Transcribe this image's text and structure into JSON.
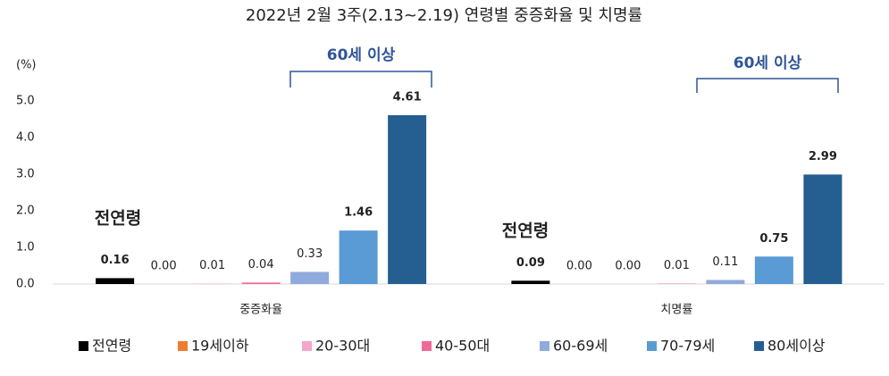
{
  "chart_data": {
    "type": "bar",
    "title": "2022년 2월 3주(2.13~2.19) 연령별 중증화율 및 치명률",
    "y_label": "(%)",
    "categories": [
      "중증화율",
      "치명률"
    ],
    "series": [
      {
        "name": "전연령",
        "color": "#000000",
        "values": [
          0.16,
          0.09
        ],
        "value_labels": [
          "0.16",
          "0.09"
        ]
      },
      {
        "name": "19세이하",
        "color": "#ed7d31",
        "values": [
          0,
          0
        ],
        "value_labels": [
          "0.00",
          "0.00"
        ]
      },
      {
        "name": "20-30대",
        "color": "#f4a6cc",
        "values": [
          0.01,
          0
        ],
        "value_labels": [
          "0.01",
          "0.00"
        ]
      },
      {
        "name": "40-50대",
        "color": "#ee6a9a",
        "values": [
          0.04,
          0.01
        ],
        "value_labels": [
          "0.04",
          "0.01"
        ]
      },
      {
        "name": "60-69세",
        "color": "#8faadc",
        "values": [
          0.33,
          0.11
        ],
        "value_labels": [
          "0.33",
          "0.11"
        ]
      },
      {
        "name": "70-79세",
        "color": "#5b9bd5",
        "values": [
          1.46,
          0.75
        ],
        "value_labels": [
          "1.46",
          "0.75"
        ]
      },
      {
        "name": "80세이상",
        "color": "#255e91",
        "values": [
          4.61,
          2.99
        ],
        "value_labels": [
          "4.61",
          "2.99"
        ]
      }
    ],
    "ylim": [
      0,
      5
    ],
    "yticks": [
      {
        "value": 0,
        "label": "0.0"
      },
      {
        "value": 1,
        "label": "1.0"
      },
      {
        "value": 2,
        "label": "2.0"
      },
      {
        "value": 3,
        "label": "3.0"
      },
      {
        "value": 4,
        "label": "4.0"
      },
      {
        "value": 5,
        "label": "5.0"
      }
    ],
    "grid": false,
    "annotations": [
      "전연령",
      "전연령",
      "60세 이상",
      "60세 이상"
    ]
  }
}
